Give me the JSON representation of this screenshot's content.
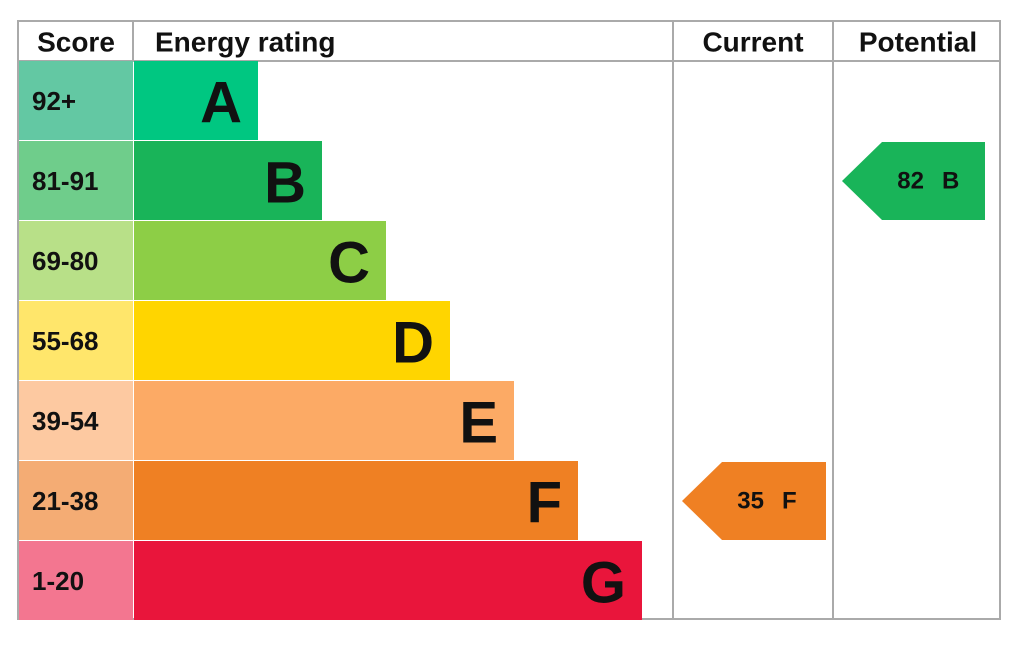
{
  "header": {
    "score": "Score",
    "rating": "Energy rating",
    "current": "Current",
    "potential": "Potential"
  },
  "bands": [
    {
      "range": "92+",
      "letter": "A",
      "color": "#00c781",
      "light": "#63c8a3"
    },
    {
      "range": "81-91",
      "letter": "B",
      "color": "#19b459",
      "light": "#6fcd8b"
    },
    {
      "range": "69-80",
      "letter": "C",
      "color": "#8dce46",
      "light": "#b8e088"
    },
    {
      "range": "55-68",
      "letter": "D",
      "color": "#ffd500",
      "light": "#ffe66b"
    },
    {
      "range": "39-54",
      "letter": "E",
      "color": "#fcaa65",
      "light": "#fdc9a1"
    },
    {
      "range": "21-38",
      "letter": "F",
      "color": "#ef8023",
      "light": "#f4ac74"
    },
    {
      "range": "1-20",
      "letter": "G",
      "color": "#e9153b",
      "light": "#f37690"
    }
  ],
  "current": {
    "score": 35,
    "letter": "F"
  },
  "potential": {
    "score": 82,
    "letter": "B"
  }
}
